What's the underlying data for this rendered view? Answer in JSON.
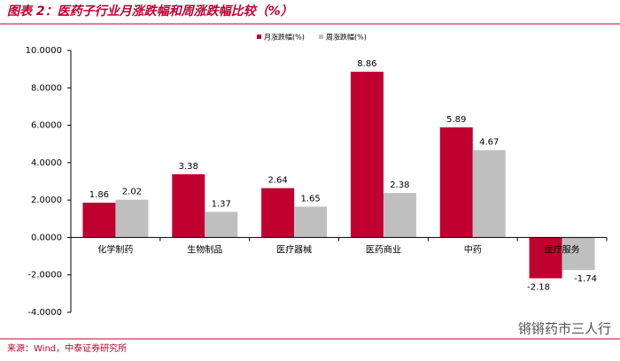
{
  "chart_data": {
    "type": "bar",
    "title": "图表 2：医药子行业月涨跌幅和周涨跌幅比较（%）",
    "categories": [
      "化学制药",
      "生物制品",
      "医疗器械",
      "医药商业",
      "中药",
      "医疗服务"
    ],
    "series": [
      {
        "name": "月涨跌幅(%)",
        "color": "#c0002f",
        "values": [
          1.86,
          3.38,
          2.64,
          8.86,
          5.89,
          -2.18
        ]
      },
      {
        "name": "周涨跌幅(%)",
        "color": "#bfbfbf",
        "values": [
          2.02,
          1.37,
          1.65,
          2.38,
          4.67,
          -1.74
        ]
      }
    ],
    "ylim": [
      -4,
      10
    ],
    "yticks": [
      {
        "value": -4,
        "label": "-4.0000"
      },
      {
        "value": -2,
        "label": "-2.0000"
      },
      {
        "value": 0,
        "label": "0.0000"
      },
      {
        "value": 2,
        "label": "2.0000"
      },
      {
        "value": 4,
        "label": "4.0000"
      },
      {
        "value": 6,
        "label": "6.0000"
      },
      {
        "value": 8,
        "label": "8.0000"
      },
      {
        "value": 10,
        "label": "10.0000"
      }
    ],
    "negative_label_color": "#ff0000",
    "source": "来源：Wind，中泰证券研究所",
    "watermark": "锵锵药市三人行"
  }
}
